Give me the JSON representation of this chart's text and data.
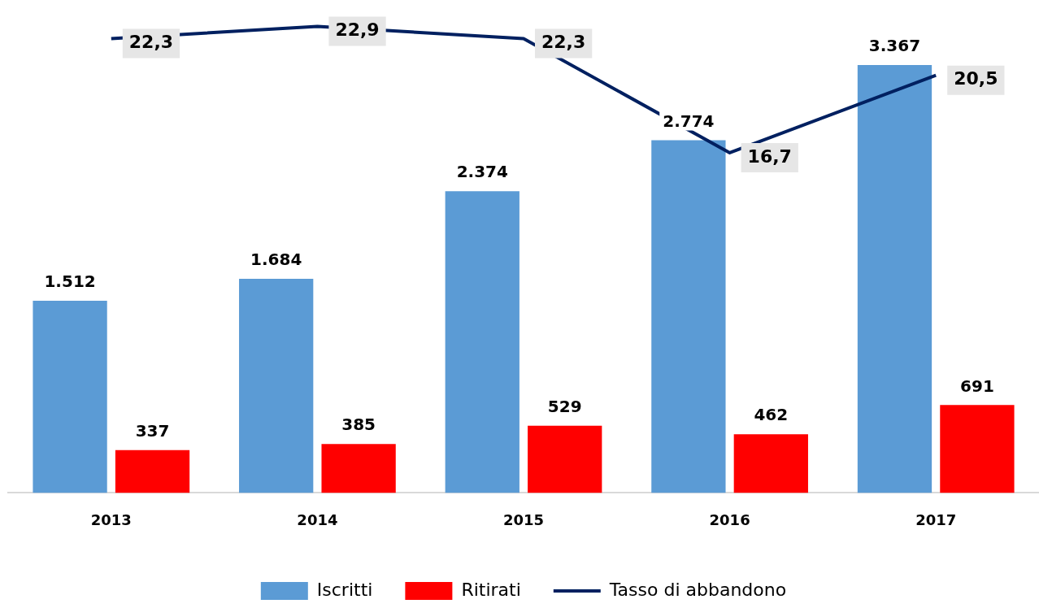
{
  "chart_data": {
    "type": "bar",
    "categories": [
      "2013",
      "2014",
      "2015",
      "2016",
      "2017"
    ],
    "series": [
      {
        "name": "Iscritti",
        "color": "#5b9bd5",
        "values": [
          1512,
          1684,
          2374,
          2774,
          3367
        ],
        "value_labels": [
          "1.512",
          "1.684",
          "2.374",
          "2.774",
          "3.367"
        ]
      },
      {
        "name": "Ritirati",
        "color": "#ff0000",
        "values": [
          337,
          385,
          529,
          462,
          691
        ],
        "value_labels": [
          "337",
          "385",
          "529",
          "462",
          "691"
        ]
      },
      {
        "name": "Tasso di abbandono",
        "type": "line",
        "axis": "y2",
        "color": "#002060",
        "values": [
          22.3,
          22.9,
          22.3,
          16.7,
          20.5
        ],
        "value_labels": [
          "22,3",
          "22,9",
          "22,3",
          "16,7",
          "20,5"
        ]
      }
    ],
    "ylim": [
      0,
      3750
    ],
    "y2lim": [
      0,
      23.4
    ],
    "legend": "bottom",
    "grid": false,
    "marker": "none"
  }
}
